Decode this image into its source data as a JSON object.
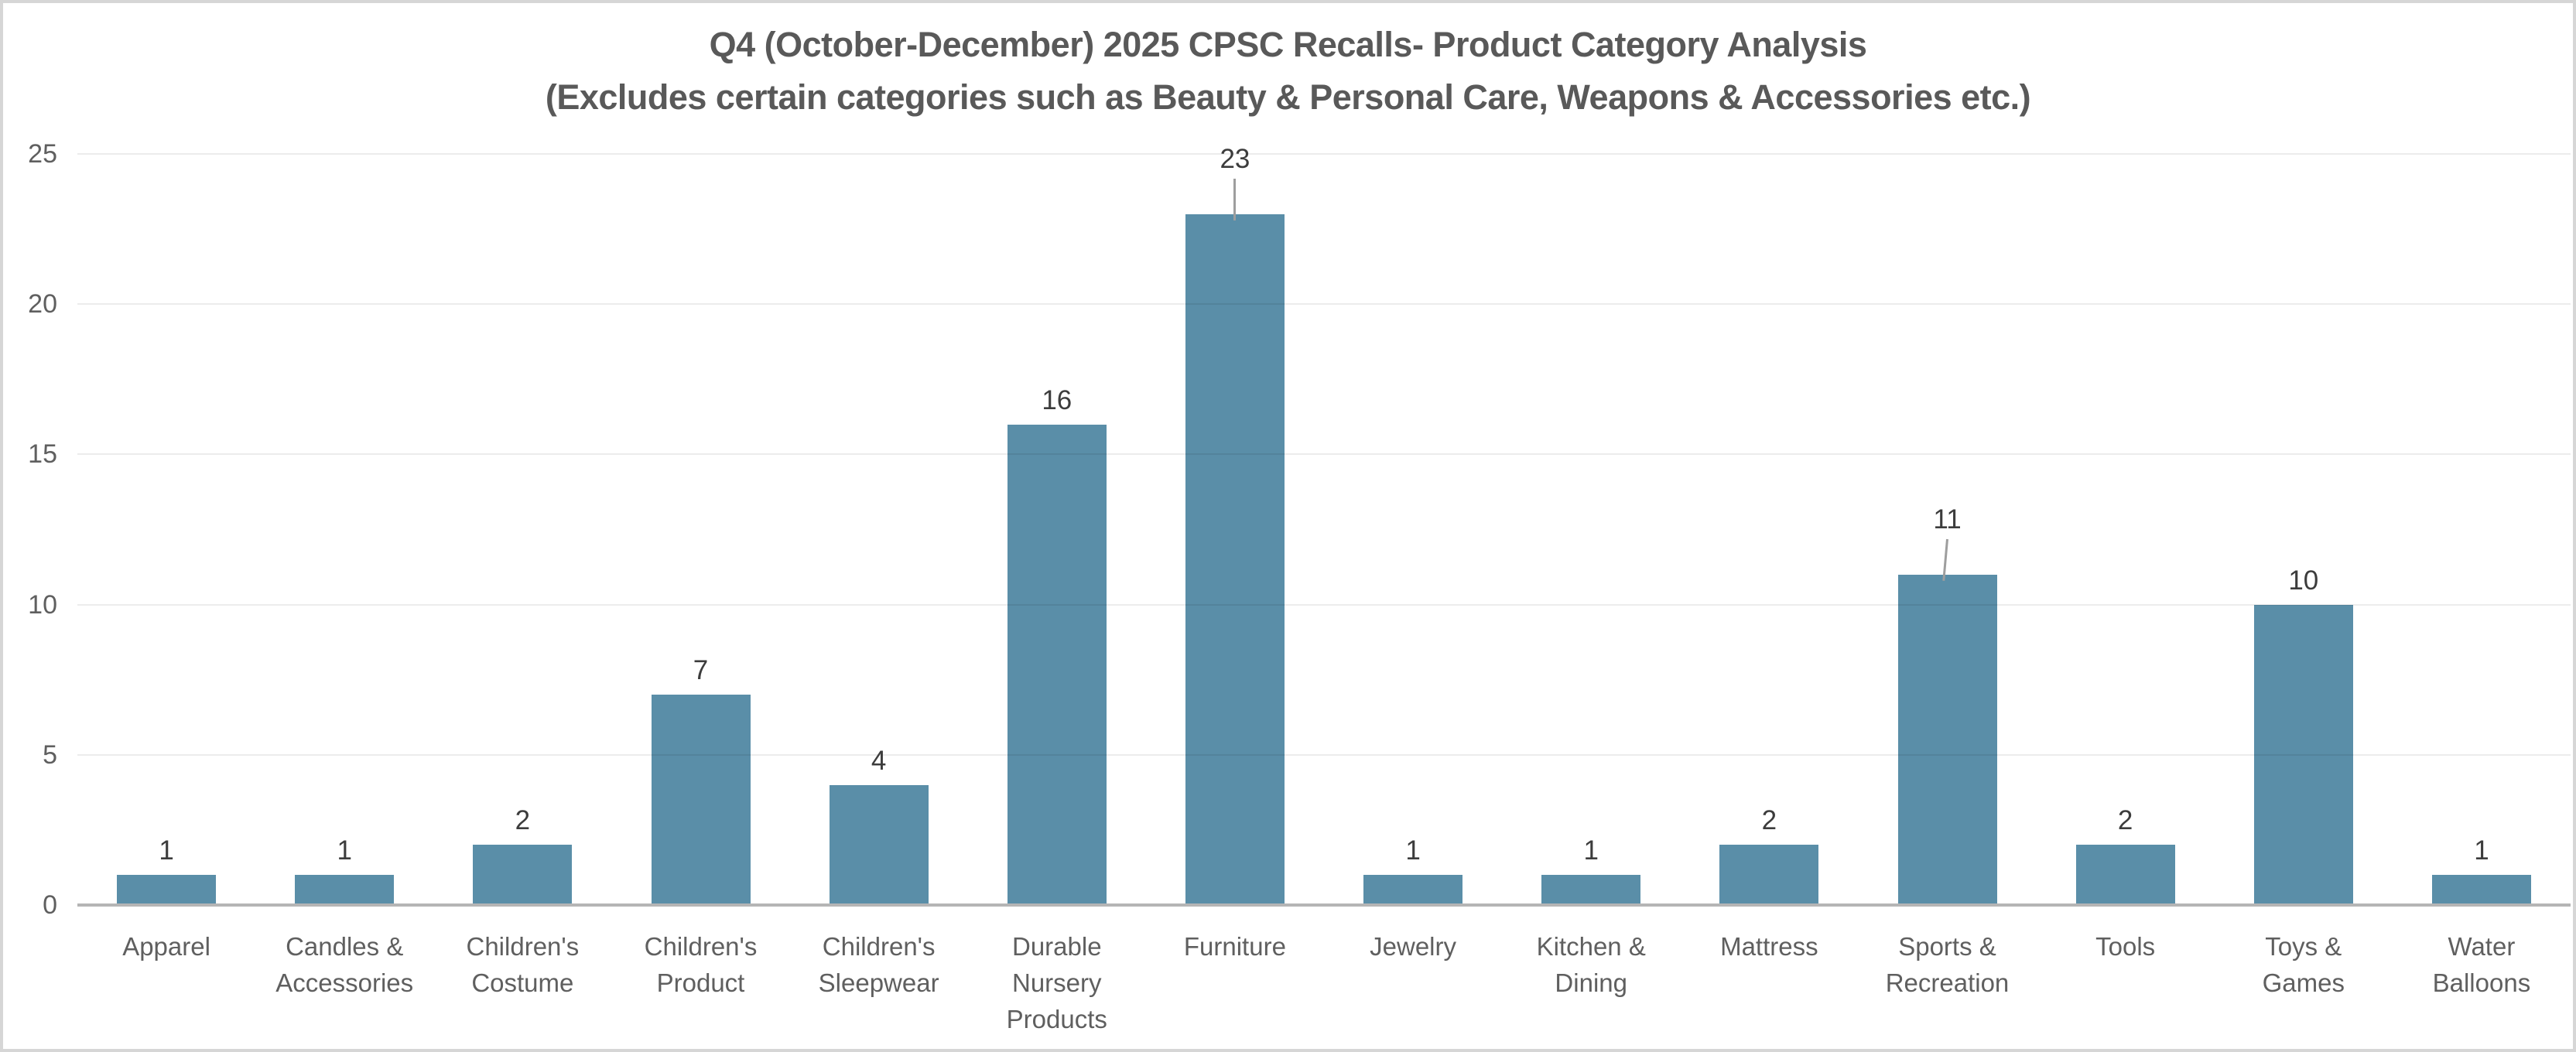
{
  "page": {
    "background": "#FFFFFF",
    "border_color": "#D6D6D6"
  },
  "chart_data": {
    "type": "bar",
    "title": "Q4 (October-December) 2025 CPSC Recalls- Product Category Analysis",
    "subtitle": "(Excludes certain categories such as Beauty & Personal Care, Weapons & Accessories etc.)",
    "categories": [
      "Apparel",
      "Candles & Accessories",
      "Children's Costume",
      "Children's Product",
      "Children's Sleepwear",
      "Durable Nursery Products",
      "Furniture",
      "Jewelry",
      "Kitchen & Dining",
      "Mattress",
      "Sports & Recreation",
      "Tools",
      "Toys & Games",
      "Water Balloons"
    ],
    "values": [
      1,
      1,
      2,
      7,
      4,
      16,
      23,
      1,
      1,
      2,
      11,
      2,
      10,
      1
    ],
    "xlabel": "",
    "ylabel": "",
    "y_ticks": [
      0,
      5,
      10,
      15,
      20,
      25
    ],
    "ylim": [
      0,
      25
    ],
    "grid": true,
    "legend": "none",
    "data_labels": true,
    "leader_lines": [
      {
        "category": "Furniture",
        "slant_deg": 0
      },
      {
        "category": "Sports & Recreation",
        "slant_deg": 5
      }
    ],
    "colors": {
      "bar": "#5A8EA8",
      "title_text": "#595959",
      "axis_text": "#5F5F5F",
      "data_label_text": "#3C3C3C",
      "gridline": "#ECECEC",
      "axis_line": "#B5B5B5",
      "leader_line": "#9E9E9E"
    }
  }
}
